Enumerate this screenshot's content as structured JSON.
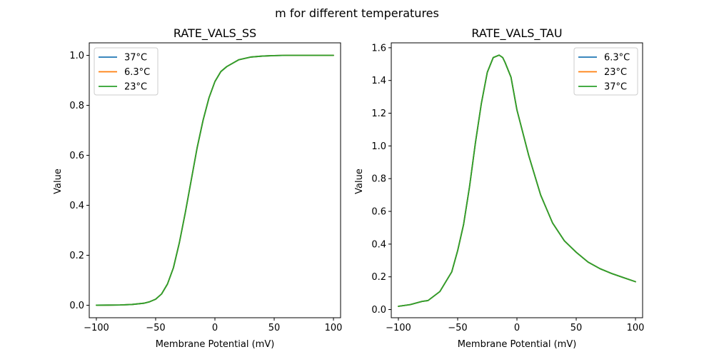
{
  "figure": {
    "suptitle": "m for different temperatures"
  },
  "chart_data": [
    {
      "type": "line",
      "title": "RATE_VALS_SS",
      "xlabel": "Membrane Potential (mV)",
      "ylabel": "Value",
      "xlim": [
        -106,
        106
      ],
      "ylim": [
        -0.05,
        1.05
      ],
      "xticks": [
        -100,
        -50,
        0,
        50,
        100
      ],
      "yticks": [
        0.0,
        0.2,
        0.4,
        0.6,
        0.8,
        1.0
      ],
      "xtick_labels": [
        "−100",
        "−50",
        "0",
        "50",
        "100"
      ],
      "ytick_labels": [
        "0.0",
        "0.2",
        "0.4",
        "0.6",
        "0.8",
        "1.0"
      ],
      "legend_position": "top-left",
      "grid": false,
      "x": [
        -100,
        -90,
        -80,
        -70,
        -60,
        -55,
        -50,
        -45,
        -40,
        -35,
        -30,
        -25,
        -20,
        -15,
        -10,
        -5,
        0,
        5,
        10,
        20,
        30,
        40,
        50,
        60,
        70,
        80,
        90,
        100
      ],
      "series": [
        {
          "name": "37°C",
          "color": "#1f77b4",
          "values": [
            0.0002,
            0.0005,
            0.0011,
            0.003,
            0.008,
            0.014,
            0.024,
            0.045,
            0.085,
            0.15,
            0.25,
            0.37,
            0.5,
            0.63,
            0.74,
            0.83,
            0.895,
            0.935,
            0.955,
            0.982,
            0.993,
            0.997,
            0.999,
            1.0,
            1.0,
            1.0,
            1.0,
            1.0
          ]
        },
        {
          "name": "6.3°C",
          "color": "#ff7f0e",
          "values": [
            0.0002,
            0.0005,
            0.0011,
            0.003,
            0.008,
            0.014,
            0.024,
            0.045,
            0.085,
            0.15,
            0.25,
            0.37,
            0.5,
            0.63,
            0.74,
            0.83,
            0.895,
            0.935,
            0.955,
            0.982,
            0.993,
            0.997,
            0.999,
            1.0,
            1.0,
            1.0,
            1.0,
            1.0
          ]
        },
        {
          "name": "23°C",
          "color": "#2ca02c",
          "values": [
            0.0002,
            0.0005,
            0.0011,
            0.003,
            0.008,
            0.014,
            0.024,
            0.045,
            0.085,
            0.15,
            0.25,
            0.37,
            0.5,
            0.63,
            0.74,
            0.83,
            0.895,
            0.935,
            0.955,
            0.982,
            0.993,
            0.997,
            0.999,
            1.0,
            1.0,
            1.0,
            1.0,
            1.0
          ]
        }
      ]
    },
    {
      "type": "line",
      "title": "RATE_VALS_TAU",
      "xlabel": "Membrane Potential (mV)",
      "ylabel": "Value",
      "xlim": [
        -106,
        106
      ],
      "ylim": [
        -0.05,
        1.63
      ],
      "xticks": [
        -100,
        -50,
        0,
        50,
        100
      ],
      "yticks": [
        0.0,
        0.2,
        0.4,
        0.6,
        0.8,
        1.0,
        1.2,
        1.4,
        1.6
      ],
      "xtick_labels": [
        "−100",
        "−50",
        "0",
        "50",
        "100"
      ],
      "ytick_labels": [
        "0.0",
        "0.2",
        "0.4",
        "0.6",
        "0.8",
        "1.0",
        "1.2",
        "1.4",
        "1.6"
      ],
      "legend_position": "top-right",
      "grid": false,
      "x": [
        -100,
        -90,
        -80,
        -75,
        -65,
        -55,
        -50,
        -45,
        -40,
        -35,
        -30,
        -25,
        -20,
        -15,
        -12,
        -10,
        -5,
        0,
        10,
        20,
        30,
        40,
        50,
        60,
        70,
        80,
        90,
        100
      ],
      "series": [
        {
          "name": "6.3°C",
          "color": "#1f77b4",
          "values": [
            0.02,
            0.03,
            0.05,
            0.055,
            0.11,
            0.23,
            0.36,
            0.52,
            0.75,
            1.02,
            1.26,
            1.45,
            1.54,
            1.555,
            1.54,
            1.51,
            1.42,
            1.22,
            0.94,
            0.7,
            0.53,
            0.42,
            0.35,
            0.29,
            0.25,
            0.22,
            0.195,
            0.17
          ]
        },
        {
          "name": "23°C",
          "color": "#ff7f0e",
          "values": [
            0.02,
            0.03,
            0.05,
            0.055,
            0.11,
            0.23,
            0.36,
            0.52,
            0.75,
            1.02,
            1.26,
            1.45,
            1.54,
            1.555,
            1.54,
            1.51,
            1.42,
            1.22,
            0.94,
            0.7,
            0.53,
            0.42,
            0.35,
            0.29,
            0.25,
            0.22,
            0.195,
            0.17
          ]
        },
        {
          "name": "37°C",
          "color": "#2ca02c",
          "values": [
            0.02,
            0.03,
            0.05,
            0.055,
            0.11,
            0.23,
            0.36,
            0.52,
            0.75,
            1.02,
            1.26,
            1.45,
            1.54,
            1.555,
            1.54,
            1.51,
            1.42,
            1.22,
            0.94,
            0.7,
            0.53,
            0.42,
            0.35,
            0.29,
            0.25,
            0.22,
            0.195,
            0.17
          ]
        }
      ]
    }
  ]
}
